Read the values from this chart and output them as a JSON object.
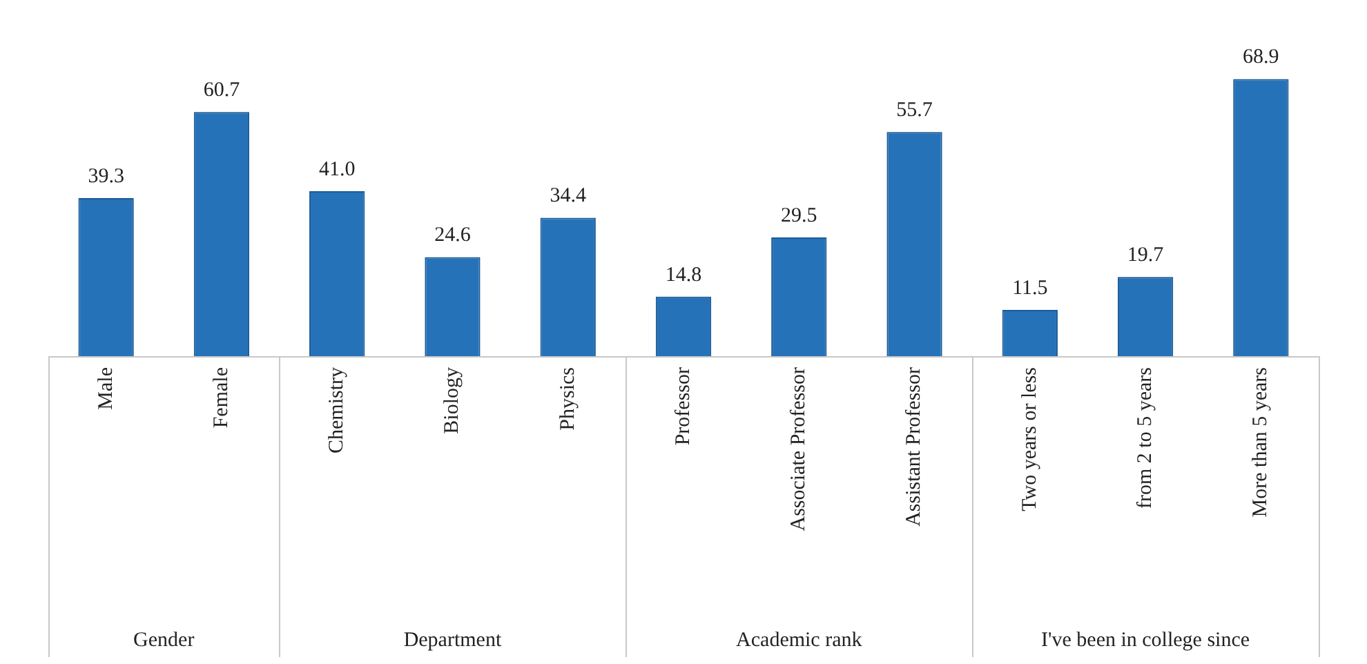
{
  "chart_data": {
    "type": "bar",
    "categories": [
      "Male",
      "Female",
      "Chemistry",
      "Biology",
      "Physics",
      "Professor",
      "Associate Professor",
      "Assistant Professor",
      "Two years or less",
      "from 2 to 5 years",
      "More than 5 years"
    ],
    "values": [
      39.3,
      60.7,
      41.0,
      24.6,
      34.4,
      14.8,
      29.5,
      55.7,
      11.5,
      19.7,
      68.9
    ],
    "value_labels": [
      "39.3",
      "60.7",
      "41.0",
      "24.6",
      "34.4",
      "14.8",
      "29.5",
      "55.7",
      "11.5",
      "19.7",
      "68.9"
    ],
    "color": "#2672b8",
    "annotations": [
      "Gender",
      "Department",
      "Academic rank",
      "I've been in college since"
    ],
    "legend": false
  }
}
